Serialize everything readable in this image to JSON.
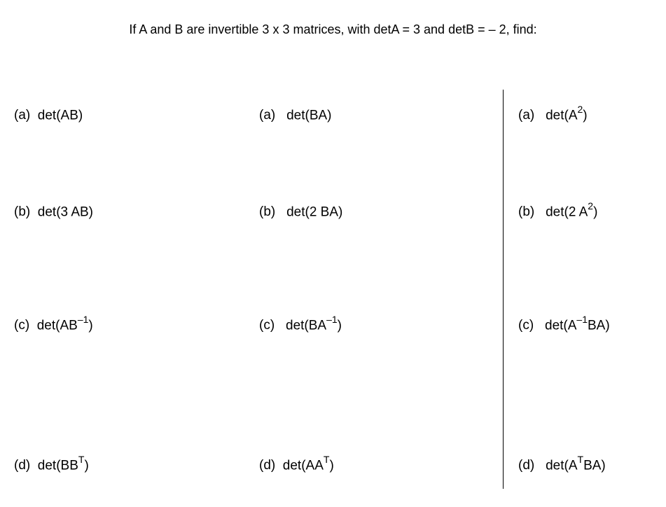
{
  "header": "If A and B are invertible 3 x 3 matrices, with detA = 3 and detB = – 2,  find:",
  "columns": {
    "col1": {
      "a": {
        "label": "(a)",
        "expr_pre": "det(AB)",
        "sup": "",
        "expr_post": ""
      },
      "b": {
        "label": "(b)",
        "expr_pre": "det(3 AB)",
        "sup": "",
        "expr_post": ""
      },
      "c": {
        "label": "(c)",
        "expr_pre": "det(AB",
        "sup": "–1",
        "expr_post": ")"
      },
      "d": {
        "label": "(d)",
        "expr_pre": "det(BB",
        "sup": "T",
        "expr_post": ")"
      }
    },
    "col2": {
      "a": {
        "label": "(a)",
        "expr_pre": "det(BA)",
        "sup": "",
        "expr_post": ""
      },
      "b": {
        "label": "(b)",
        "expr_pre": "det(2 BA)",
        "sup": "",
        "expr_post": ""
      },
      "c": {
        "label": "(c)",
        "expr_pre": "det(BA",
        "sup": "–1",
        "expr_post": ")"
      },
      "d": {
        "label": "(d)",
        "expr_pre": "det(AA",
        "sup": "T",
        "expr_post": ")"
      }
    },
    "col3": {
      "a": {
        "label": "(a)",
        "expr_pre": "det(A",
        "sup": "2",
        "expr_post": ")"
      },
      "b": {
        "label": "(b)",
        "expr_pre": "det(2 A",
        "sup": "2",
        "expr_post": ")"
      },
      "c": {
        "label": "(c)",
        "expr_pre": "det(A",
        "sup": "–1",
        "expr_post": "BA)"
      },
      "d": {
        "label": "(d)",
        "expr_pre": "det(A",
        "sup": "T",
        "expr_post": "BA)"
      }
    }
  },
  "style": {
    "background_color": "#ffffff",
    "text_color": "#000000",
    "header_fontsize": 18,
    "item_fontsize": 19,
    "sup_fontsize": 14,
    "font_family": "Arial"
  }
}
